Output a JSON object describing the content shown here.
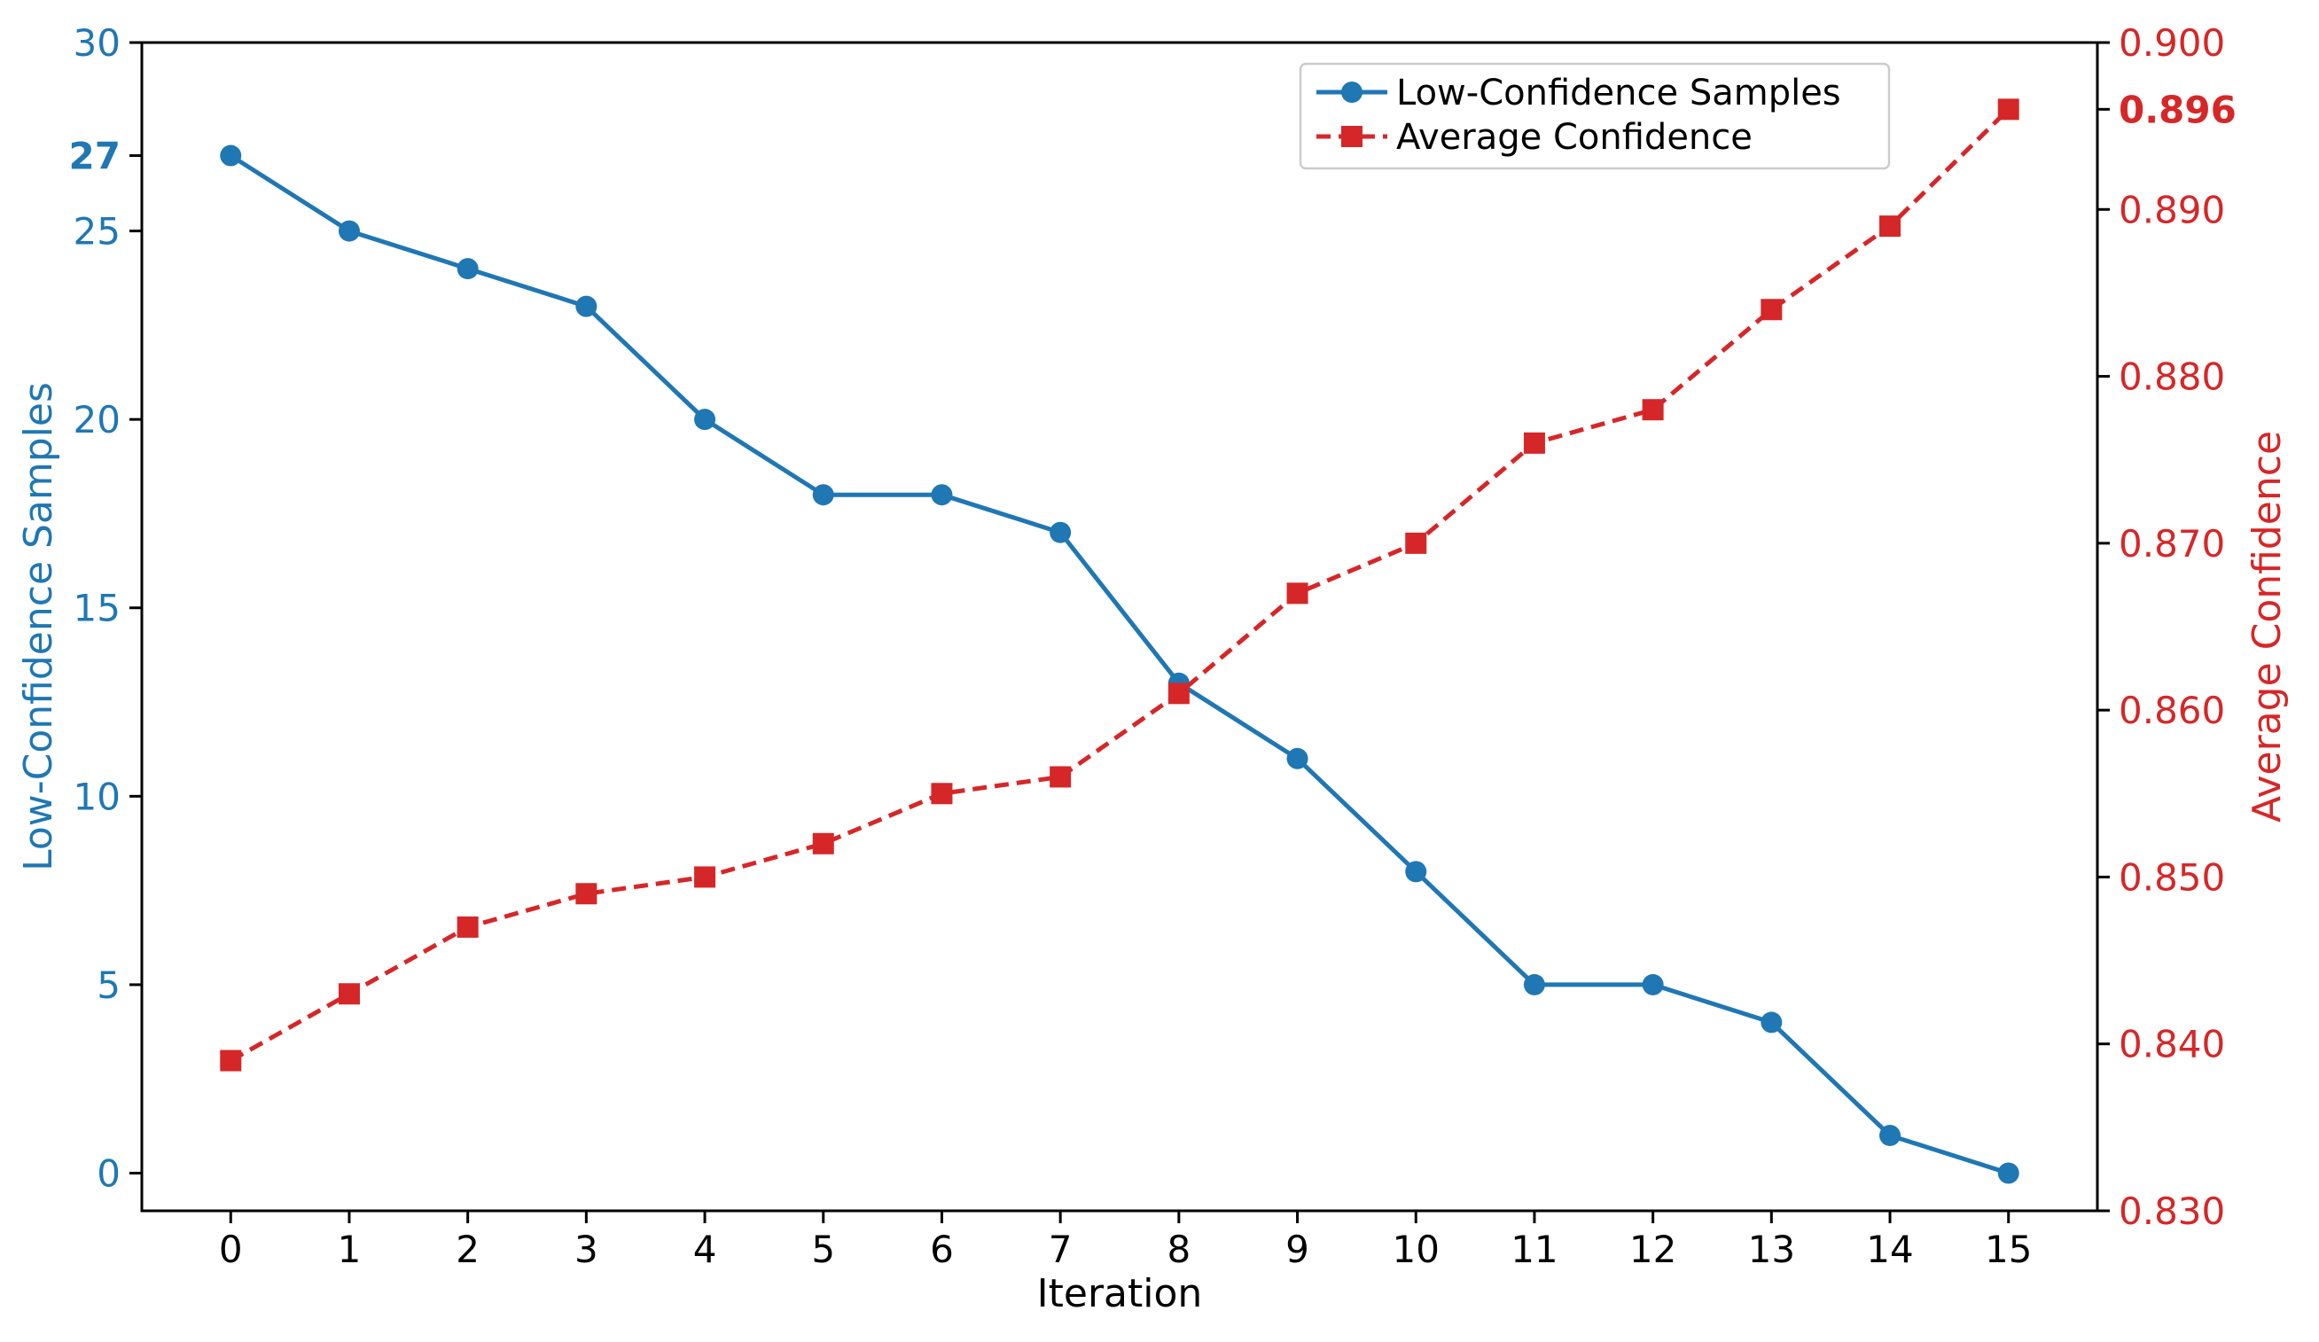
{
  "colors": {
    "left_series": "#1f77b4",
    "right_series": "#d62728",
    "axis": "#000000"
  },
  "chart_data": {
    "type": "line",
    "x": [
      0,
      1,
      2,
      3,
      4,
      5,
      6,
      7,
      8,
      9,
      10,
      11,
      12,
      13,
      14,
      15
    ],
    "xlabel": "Iteration",
    "series": [
      {
        "name": "Low-Confidence Samples",
        "axis": "left",
        "marker": "circle",
        "linestyle": "solid",
        "values": [
          27,
          25,
          24,
          23,
          20,
          18,
          18,
          17,
          13,
          11,
          8,
          5,
          5,
          4,
          1,
          0
        ]
      },
      {
        "name": "Average Confidence",
        "axis": "right",
        "marker": "square",
        "linestyle": "dashed",
        "values": [
          0.839,
          0.843,
          0.847,
          0.849,
          0.85,
          0.852,
          0.855,
          0.856,
          0.861,
          0.867,
          0.87,
          0.876,
          0.878,
          0.884,
          0.889,
          0.896
        ]
      }
    ],
    "left_axis": {
      "label": "Low-Confidence Samples",
      "ylim": [
        -1,
        30
      ],
      "ticks": [
        "0",
        "5",
        "10",
        "15",
        "20",
        "25",
        "27",
        "30"
      ],
      "highlight_tick": "27"
    },
    "right_axis": {
      "label": "Average Confidence",
      "ylim": [
        0.83,
        0.9
      ],
      "ticks": [
        "0.830",
        "0.840",
        "0.850",
        "0.860",
        "0.870",
        "0.880",
        "0.890",
        "0.896",
        "0.900"
      ],
      "highlight_tick": "0.896"
    },
    "legend": {
      "position": "top-right",
      "entries": [
        "Low-Confidence Samples",
        "Average Confidence"
      ]
    },
    "grid": false
  }
}
